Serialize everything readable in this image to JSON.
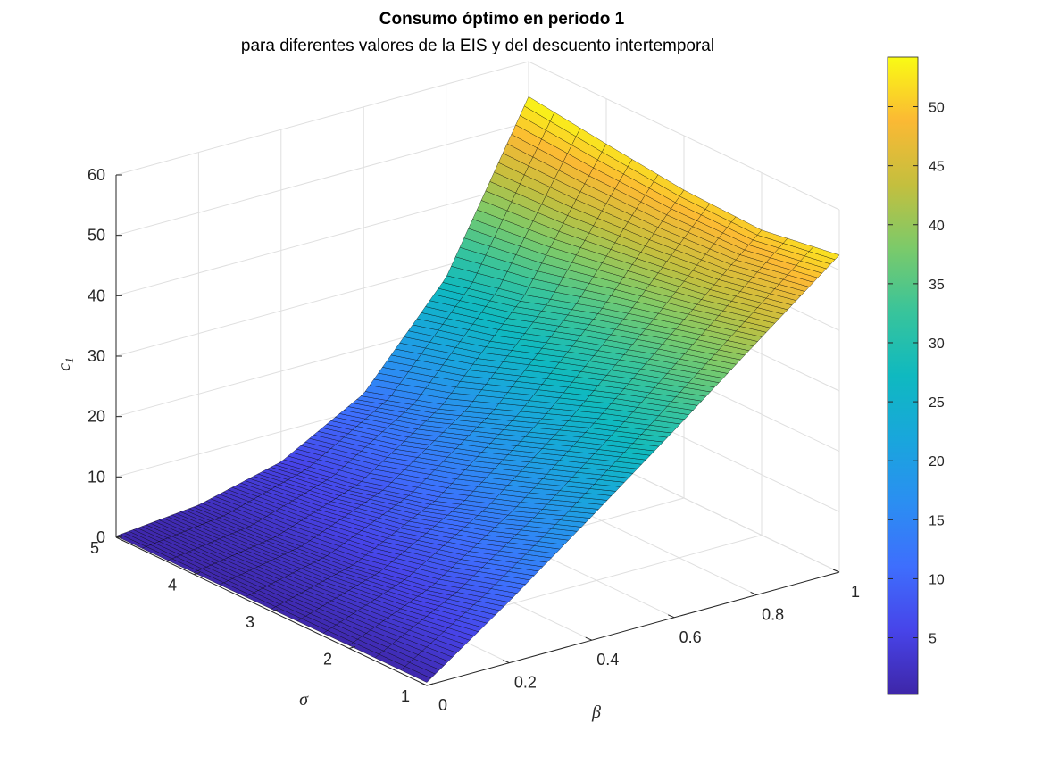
{
  "chart_data": {
    "type": "surface",
    "title": "Consumo óptimo en periodo 1",
    "subtitle": "para diferentes valores de la EIS y del descuento intertemporal",
    "zlabel": {
      "main": "c",
      "sub": "1"
    },
    "xlabel": "β",
    "ylabel": "σ",
    "x_ticks": [
      "0",
      "0.2",
      "0.4",
      "0.6",
      "0.8",
      "1"
    ],
    "y_ticks": [
      "1",
      "2",
      "3",
      "4",
      "5"
    ],
    "z_ticks": [
      "0",
      "10",
      "20",
      "30",
      "40",
      "50",
      "60"
    ],
    "xlim": [
      0,
      1
    ],
    "ylim": [
      1,
      5
    ],
    "zlim": [
      0,
      60
    ],
    "grid": true,
    "colormap": "parula",
    "colorbar": {
      "ticks": [
        "5",
        "10",
        "15",
        "20",
        "25",
        "30",
        "35",
        "40",
        "45",
        "50"
      ],
      "range": [
        0.2,
        54.2
      ]
    },
    "surface_samples": {
      "beta": [
        0,
        0.2,
        0.4,
        0.6,
        0.8,
        1.0
      ],
      "sigma": [
        1,
        2,
        3,
        4,
        5
      ],
      "c1": [
        [
          0.5,
          10.2,
          20.5,
          31.0,
          41.8,
          52.5
        ],
        [
          0.5,
          6.5,
          15.5,
          26.5,
          38.5,
          50.5
        ],
        [
          0.4,
          4.0,
          11.0,
          21.5,
          35.0,
          51.0
        ],
        [
          0.3,
          2.5,
          7.5,
          16.5,
          31.0,
          52.5
        ],
        [
          0.2,
          1.6,
          5.0,
          12.5,
          28.0,
          54.2
        ]
      ]
    },
    "edge_color": "#000000",
    "grid_color": "#dfdfdf",
    "axis_color": "#262626"
  }
}
